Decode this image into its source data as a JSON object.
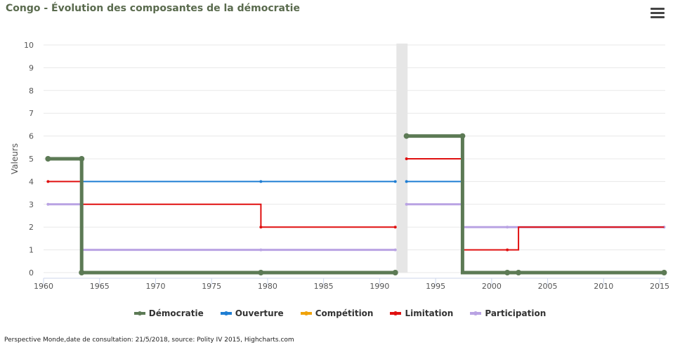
{
  "header": {
    "title": "Congo - Évolution des composantes de la démocratie",
    "menu_icon": "hamburger-menu-icon"
  },
  "footer": {
    "credits": "Perspective Monde,date de consultation: 21/5/2018, source: Polity IV 2015, Highcharts.com"
  },
  "chart_data": {
    "type": "line",
    "step": true,
    "ylabel": "Valeurs",
    "xlabel": "",
    "xlim": [
      1960,
      2015.5
    ],
    "ylim": [
      0,
      10
    ],
    "xticks": [
      1960,
      1965,
      1970,
      1975,
      1980,
      1985,
      1990,
      1995,
      2000,
      2005,
      2010,
      2015
    ],
    "yticks": [
      0,
      1,
      2,
      3,
      4,
      5,
      6,
      7,
      8,
      9,
      10
    ],
    "grid": true,
    "legend_position": "bottom",
    "plot_band": {
      "from": 1991.5,
      "to": 1992.5,
      "color": "#e6e6e6"
    },
    "series": [
      {
        "name": "Démocratie",
        "color": "#5c7a55",
        "width": 5,
        "segments": [
          [
            [
              1960.4,
              5
            ],
            [
              1963.4,
              5
            ],
            [
              1963.4,
              0
            ],
            [
              1979.4,
              0
            ],
            [
              1991.4,
              0
            ]
          ],
          [
            [
              1992.4,
              6
            ],
            [
              1997.4,
              6
            ],
            [
              1997.4,
              0
            ],
            [
              2001.4,
              0
            ],
            [
              2002.4,
              0
            ],
            [
              2015.4,
              0
            ]
          ]
        ],
        "markers": [
          [
            1960.4,
            5
          ],
          [
            1963.4,
            5
          ],
          [
            1963.4,
            0
          ],
          [
            1979.4,
            0
          ],
          [
            1991.4,
            0
          ],
          [
            1992.4,
            6
          ],
          [
            1997.4,
            6
          ],
          [
            2001.4,
            0
          ],
          [
            2002.4,
            0
          ],
          [
            2015.4,
            0
          ]
        ]
      },
      {
        "name": "Ouverture",
        "color": "#1f7ed3",
        "width": 2,
        "segments": [
          [
            [
              1963.4,
              4
            ],
            [
              1979.4,
              4
            ],
            [
              1991.4,
              4
            ]
          ],
          [
            [
              1992.4,
              4
            ],
            [
              1997.4,
              4
            ],
            [
              1997.4,
              0
            ],
            [
              2015.4,
              0
            ]
          ]
        ],
        "markers": [
          [
            1963.4,
            4
          ],
          [
            1979.4,
            4
          ],
          [
            1991.4,
            4
          ],
          [
            1992.4,
            4
          ],
          [
            1997.4,
            4
          ]
        ]
      },
      {
        "name": "Compétition",
        "color": "#f0a30a",
        "width": 2,
        "segments": [
          [
            [
              1997.4,
              3
            ],
            [
              1997.4,
              0
            ],
            [
              2001.4,
              0
            ],
            [
              2015.4,
              0
            ]
          ]
        ],
        "markers": []
      },
      {
        "name": "Limitation",
        "color": "#e01010",
        "width": 2,
        "segments": [
          [
            [
              1960.4,
              4
            ],
            [
              1963.4,
              4
            ],
            [
              1963.4,
              3
            ],
            [
              1979.4,
              3
            ],
            [
              1979.4,
              2
            ],
            [
              1991.4,
              2
            ]
          ],
          [
            [
              1992.4,
              5
            ],
            [
              1997.4,
              5
            ],
            [
              1997.4,
              1
            ],
            [
              2001.4,
              1
            ],
            [
              2002.4,
              1
            ],
            [
              2002.4,
              2
            ],
            [
              2015.4,
              2
            ]
          ]
        ],
        "markers": [
          [
            1960.4,
            4
          ],
          [
            1963.4,
            4
          ],
          [
            1979.4,
            2
          ],
          [
            1991.4,
            2
          ],
          [
            1992.4,
            5
          ],
          [
            2001.4,
            1
          ]
        ]
      },
      {
        "name": "Participation",
        "color": "#b9a3e3",
        "width": 3,
        "segments": [
          [
            [
              1960.4,
              3
            ],
            [
              1963.4,
              3
            ],
            [
              1963.4,
              1
            ],
            [
              1979.4,
              1
            ],
            [
              1991.4,
              1
            ]
          ],
          [
            [
              1992.4,
              3
            ],
            [
              1997.4,
              3
            ],
            [
              1997.4,
              2
            ],
            [
              2001.4,
              2
            ],
            [
              2015.4,
              2
            ]
          ]
        ],
        "markers": [
          [
            1960.4,
            3
          ],
          [
            1963.4,
            3
          ],
          [
            1979.4,
            1
          ],
          [
            1991.4,
            1
          ],
          [
            1992.4,
            3
          ],
          [
            2001.4,
            2
          ],
          [
            2015.4,
            2
          ]
        ]
      }
    ]
  }
}
